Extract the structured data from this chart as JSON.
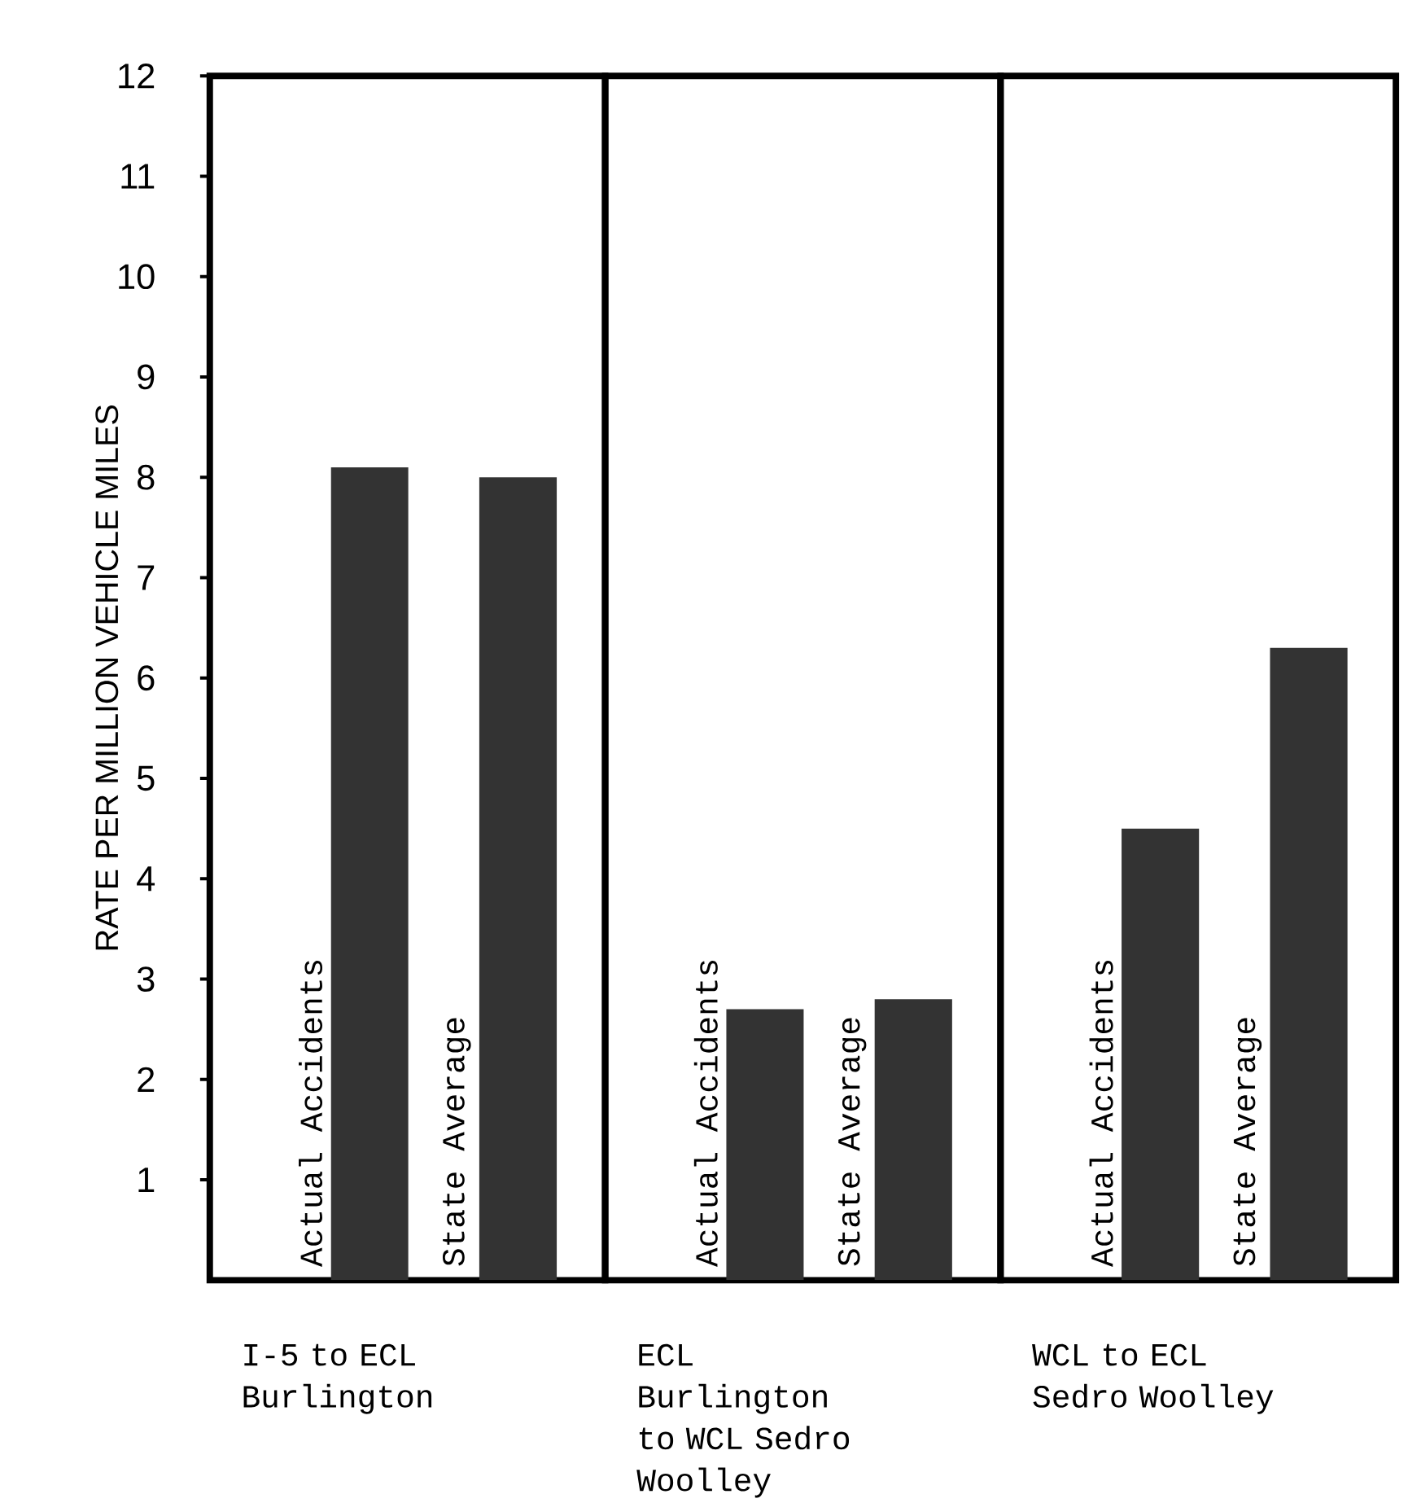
{
  "chart_data": [
    {
      "type": "bar",
      "xlabel": "I-5 to ECL Burlington",
      "ylabel": "RATE PER MILLION VEHICLE MILES",
      "categories": [
        "Actual Accidents",
        "State Average"
      ],
      "values": [
        8.1,
        8.0
      ],
      "color": "#333333",
      "ylim": [
        0,
        12
      ],
      "yticks": [
        1,
        2,
        3,
        4,
        5,
        6,
        7,
        8,
        9,
        10,
        11,
        12
      ],
      "grid": false
    },
    {
      "type": "bar",
      "xlabel": "ECL Burlington to WCL Sedro Woolley",
      "categories": [
        "Actual Accidents",
        "State Average"
      ],
      "values": [
        2.7,
        2.8
      ],
      "color": "#333333",
      "ylim": [
        0,
        12
      ],
      "yticks": [
        1,
        2,
        3,
        4,
        5,
        6,
        7,
        8,
        9,
        10,
        11,
        12
      ],
      "tick_labels": "x",
      "grid": false
    },
    {
      "type": "bar",
      "xlabel": "WCL to ECL Sedro Woolley",
      "categories": [
        "Actual Accidents",
        "State Average"
      ],
      "values": [
        4.5,
        6.3
      ],
      "color": "#333333",
      "ylim": [
        0,
        12
      ],
      "yticks": [
        1,
        2,
        3,
        4,
        5,
        6,
        7,
        8,
        9,
        10,
        11,
        12
      ],
      "tick_labels": "x",
      "grid": false
    }
  ]
}
